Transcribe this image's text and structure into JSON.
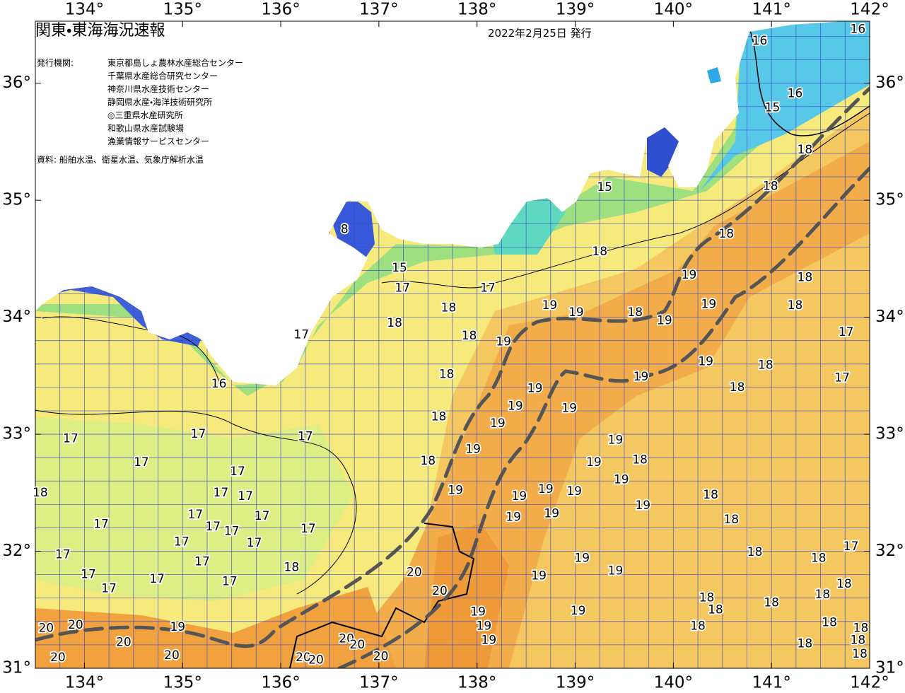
{
  "map": {
    "title": "関東・東海海況速報",
    "date": "2022年2月25日 発行",
    "issuer_label": "発行機関:",
    "issuers": [
      "東京都島しょ農林水産総合センター",
      "千葉県水産総合研究センター",
      "神奈川県水産技術センター",
      "静岡県水産・海洋技術研究所",
      "◎三重県水産研究所",
      "和歌山県水産試験場",
      "漁業情報サービスセンター"
    ],
    "source": "資料: 船舶水温、衛星水温、気象庁解析水温",
    "lon_lim": [
      133.5,
      142
    ],
    "lat_lim": [
      31,
      36.53
    ],
    "lon_ticks": [
      {
        "value": 134,
        "label": "134°"
      },
      {
        "value": 135,
        "label": "135°"
      },
      {
        "value": 136,
        "label": "136°"
      },
      {
        "value": 137,
        "label": "137°"
      },
      {
        "value": 138,
        "label": "138°"
      },
      {
        "value": 139,
        "label": "139°"
      },
      {
        "value": 140,
        "label": "140°"
      },
      {
        "value": 141,
        "label": "141°"
      },
      {
        "value": 142,
        "label": "142°"
      }
    ],
    "lat_ticks": [
      {
        "value": 31,
        "label": "31°"
      },
      {
        "value": 32,
        "label": "32°"
      },
      {
        "value": 33,
        "label": "33°"
      },
      {
        "value": 34,
        "label": "34°"
      },
      {
        "value": 35,
        "label": "35°"
      },
      {
        "value": 36,
        "label": "36°"
      }
    ],
    "grid_step_lon": 0.25,
    "grid_step_lat": 0.2,
    "temperature_labels": [
      {
        "value": 16,
        "lon": 141.88,
        "lat": 36.46
      },
      {
        "value": 16,
        "lon": 140.88,
        "lat": 36.36
      },
      {
        "value": 16,
        "lon": 141.24,
        "lat": 35.91
      },
      {
        "value": 15,
        "lon": 141.01,
        "lat": 35.79
      },
      {
        "value": 18,
        "lon": 141.34,
        "lat": 35.43
      },
      {
        "value": 18,
        "lon": 140.99,
        "lat": 35.12
      },
      {
        "value": 15,
        "lon": 139.3,
        "lat": 35.11
      },
      {
        "value": 8,
        "lon": 136.65,
        "lat": 34.75
      },
      {
        "value": 15,
        "lon": 137.21,
        "lat": 34.42
      },
      {
        "value": 17,
        "lon": 137.24,
        "lat": 34.25
      },
      {
        "value": 17,
        "lon": 138.11,
        "lat": 34.25
      },
      {
        "value": 18,
        "lon": 139.25,
        "lat": 34.56
      },
      {
        "value": 18,
        "lon": 140.54,
        "lat": 34.71
      },
      {
        "value": 19,
        "lon": 140.16,
        "lat": 34.36
      },
      {
        "value": 18,
        "lon": 141.34,
        "lat": 34.34
      },
      {
        "value": 19,
        "lon": 138.74,
        "lat": 34.1
      },
      {
        "value": 19,
        "lon": 139.01,
        "lat": 34.04
      },
      {
        "value": 18,
        "lon": 139.61,
        "lat": 34.04
      },
      {
        "value": 19,
        "lon": 139.91,
        "lat": 33.97
      },
      {
        "value": 19,
        "lon": 140.36,
        "lat": 34.11
      },
      {
        "value": 18,
        "lon": 141.24,
        "lat": 34.1
      },
      {
        "value": 18,
        "lon": 137.71,
        "lat": 34.08
      },
      {
        "value": 18,
        "lon": 137.16,
        "lat": 33.95
      },
      {
        "value": 17,
        "lon": 136.21,
        "lat": 33.85
      },
      {
        "value": 18,
        "lon": 137.92,
        "lat": 33.84
      },
      {
        "value": 19,
        "lon": 138.27,
        "lat": 33.79
      },
      {
        "value": 17,
        "lon": 141.76,
        "lat": 33.87
      },
      {
        "value": 18,
        "lon": 137.69,
        "lat": 33.51
      },
      {
        "value": 19,
        "lon": 140.33,
        "lat": 33.62
      },
      {
        "value": 18,
        "lon": 140.94,
        "lat": 33.59
      },
      {
        "value": 17,
        "lon": 141.72,
        "lat": 33.48
      },
      {
        "value": 19,
        "lon": 139.67,
        "lat": 33.49
      },
      {
        "value": 16,
        "lon": 135.37,
        "lat": 33.43
      },
      {
        "value": 19,
        "lon": 138.59,
        "lat": 33.39
      },
      {
        "value": 18,
        "lon": 140.65,
        "lat": 33.4
      },
      {
        "value": 19,
        "lon": 138.39,
        "lat": 33.24
      },
      {
        "value": 18,
        "lon": 137.61,
        "lat": 33.15
      },
      {
        "value": 19,
        "lon": 138.21,
        "lat": 33.09
      },
      {
        "value": 19,
        "lon": 138.94,
        "lat": 33.22
      },
      {
        "value": 17,
        "lon": 136.25,
        "lat": 32.98
      },
      {
        "value": 17,
        "lon": 135.16,
        "lat": 33.0
      },
      {
        "value": 17,
        "lon": 133.86,
        "lat": 32.96
      },
      {
        "value": 19,
        "lon": 137.96,
        "lat": 32.87
      },
      {
        "value": 19,
        "lon": 139.41,
        "lat": 32.95
      },
      {
        "value": 18,
        "lon": 137.5,
        "lat": 32.77
      },
      {
        "value": 19,
        "lon": 139.19,
        "lat": 32.76
      },
      {
        "value": 18,
        "lon": 139.66,
        "lat": 32.78
      },
      {
        "value": 17,
        "lon": 134.58,
        "lat": 32.76
      },
      {
        "value": 17,
        "lon": 135.56,
        "lat": 32.68
      },
      {
        "value": 17,
        "lon": 135.39,
        "lat": 32.5
      },
      {
        "value": 17,
        "lon": 135.64,
        "lat": 32.47
      },
      {
        "value": 18,
        "lon": 133.55,
        "lat": 32.5
      },
      {
        "value": 19,
        "lon": 137.78,
        "lat": 32.52
      },
      {
        "value": 19,
        "lon": 138.43,
        "lat": 32.47
      },
      {
        "value": 19,
        "lon": 138.7,
        "lat": 32.53
      },
      {
        "value": 19,
        "lon": 138.99,
        "lat": 32.51
      },
      {
        "value": 19,
        "lon": 139.47,
        "lat": 32.61
      },
      {
        "value": 18,
        "lon": 140.38,
        "lat": 32.48
      },
      {
        "value": 19,
        "lon": 139.69,
        "lat": 32.39
      },
      {
        "value": 19,
        "lon": 138.37,
        "lat": 32.29
      },
      {
        "value": 19,
        "lon": 138.76,
        "lat": 32.32
      },
      {
        "value": 18,
        "lon": 140.59,
        "lat": 32.27
      },
      {
        "value": 17,
        "lon": 134.17,
        "lat": 32.23
      },
      {
        "value": 17,
        "lon": 135.13,
        "lat": 32.31
      },
      {
        "value": 17,
        "lon": 135.81,
        "lat": 32.3
      },
      {
        "value": 17,
        "lon": 136.28,
        "lat": 32.19
      },
      {
        "value": 17,
        "lon": 135.31,
        "lat": 32.21
      },
      {
        "value": 17,
        "lon": 135.5,
        "lat": 32.17
      },
      {
        "value": 17,
        "lon": 135.73,
        "lat": 32.07
      },
      {
        "value": 17,
        "lon": 134.99,
        "lat": 32.08
      },
      {
        "value": 17,
        "lon": 141.81,
        "lat": 32.04
      },
      {
        "value": 18,
        "lon": 140.83,
        "lat": 31.99
      },
      {
        "value": 17,
        "lon": 133.78,
        "lat": 31.97
      },
      {
        "value": 17,
        "lon": 135.2,
        "lat": 31.91
      },
      {
        "value": 18,
        "lon": 136.11,
        "lat": 31.86
      },
      {
        "value": 19,
        "lon": 139.07,
        "lat": 31.94
      },
      {
        "value": 19,
        "lon": 139.41,
        "lat": 31.83
      },
      {
        "value": 20,
        "lon": 137.36,
        "lat": 31.82
      },
      {
        "value": 17,
        "lon": 134.04,
        "lat": 31.8
      },
      {
        "value": 17,
        "lon": 134.74,
        "lat": 31.76
      },
      {
        "value": 17,
        "lon": 135.48,
        "lat": 31.74
      },
      {
        "value": 19,
        "lon": 138.63,
        "lat": 31.79
      },
      {
        "value": 18,
        "lon": 141.48,
        "lat": 31.94
      },
      {
        "value": 18,
        "lon": 141.74,
        "lat": 31.72
      },
      {
        "value": 17,
        "lon": 134.25,
        "lat": 31.68
      },
      {
        "value": 20,
        "lon": 137.62,
        "lat": 31.66
      },
      {
        "value": 18,
        "lon": 141.52,
        "lat": 31.63
      },
      {
        "value": 18,
        "lon": 140.34,
        "lat": 31.6
      },
      {
        "value": 18,
        "lon": 141.0,
        "lat": 31.56
      },
      {
        "value": 18,
        "lon": 140.43,
        "lat": 31.5
      },
      {
        "value": 19,
        "lon": 138.01,
        "lat": 31.48
      },
      {
        "value": 19,
        "lon": 139.03,
        "lat": 31.49
      },
      {
        "value": 19,
        "lon": 138.07,
        "lat": 31.36
      },
      {
        "value": 20,
        "lon": 133.91,
        "lat": 31.37
      },
      {
        "value": 19,
        "lon": 134.95,
        "lat": 31.35
      },
      {
        "value": 18,
        "lon": 141.59,
        "lat": 31.39
      },
      {
        "value": 18,
        "lon": 140.25,
        "lat": 31.36
      },
      {
        "value": 18,
        "lon": 141.91,
        "lat": 31.34
      },
      {
        "value": 20,
        "lon": 134.4,
        "lat": 31.22
      },
      {
        "value": 19,
        "lon": 138.12,
        "lat": 31.24
      },
      {
        "value": 20,
        "lon": 136.67,
        "lat": 31.25
      },
      {
        "value": 20,
        "lon": 136.78,
        "lat": 31.2
      },
      {
        "value": 18,
        "lon": 141.34,
        "lat": 31.21
      },
      {
        "value": 18,
        "lon": 141.88,
        "lat": 31.24
      },
      {
        "value": 20,
        "lon": 133.61,
        "lat": 31.34
      },
      {
        "value": 20,
        "lon": 133.73,
        "lat": 31.09
      },
      {
        "value": 20,
        "lon": 134.89,
        "lat": 31.11
      },
      {
        "value": 20,
        "lon": 136.23,
        "lat": 31.09
      },
      {
        "value": 20,
        "lon": 136.36,
        "lat": 31.07
      },
      {
        "value": 20,
        "lon": 137.02,
        "lat": 31.1
      },
      {
        "value": 18,
        "lon": 141.9,
        "lat": 31.12
      }
    ]
  }
}
